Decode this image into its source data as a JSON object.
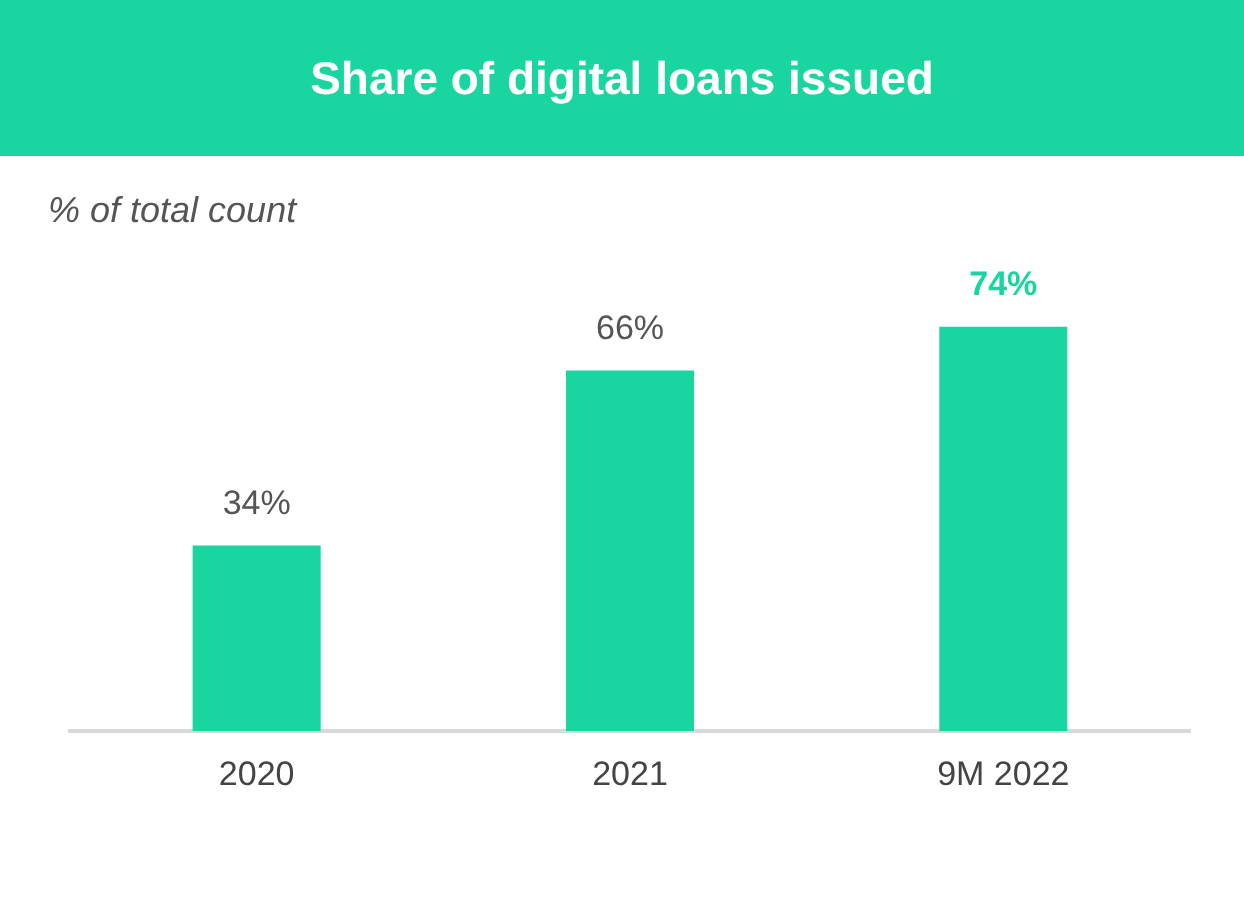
{
  "chart_data": {
    "type": "bar",
    "title": "Share of digital loans issued",
    "subtitle": "% of total count",
    "categories": [
      "2020",
      "2021",
      "9M 2022"
    ],
    "values": [
      34,
      66,
      74
    ],
    "value_labels": [
      "34%",
      "66%",
      "74%"
    ],
    "color": "#19d6a0",
    "grid": false,
    "legend": false
  }
}
